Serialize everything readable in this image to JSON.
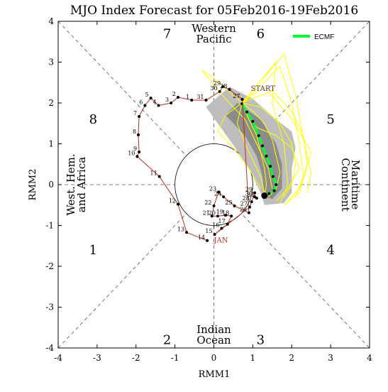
{
  "chart_data": {
    "type": "line",
    "title": "MJO Index Forecast for 05Feb2016-19Feb2016",
    "xlabel": "RMM1",
    "ylabel": "RMM2",
    "xlim": [
      -4,
      4
    ],
    "ylim": [
      -4,
      4
    ],
    "x_ticks": [
      "-4",
      "-3",
      "-2",
      "-1",
      "0",
      "1",
      "2",
      "3",
      "4"
    ],
    "y_ticks": [
      "-4",
      "-3",
      "-2",
      "-1",
      "0",
      "1",
      "2",
      "3",
      "4"
    ],
    "grid": false,
    "legend": {
      "position": "top-right",
      "entries": [
        {
          "name": "ECMF",
          "color": "#00ff33"
        }
      ]
    },
    "colors": {
      "history": "#c0281e",
      "ensemble": "#ffff00",
      "ensemble_mean": "#00ff33",
      "spread": "#a9a9a9",
      "start_label": "#4b2a88",
      "jan_label": "#c0281e"
    },
    "phases": [
      {
        "label": "1",
        "x": -3.1,
        "y": -1.6
      },
      {
        "label": "2",
        "x": -1.2,
        "y": -3.8
      },
      {
        "label": "3",
        "x": 1.2,
        "y": -3.8
      },
      {
        "label": "4",
        "x": 3.0,
        "y": -1.6
      },
      {
        "label": "5",
        "x": 3.0,
        "y": 1.6
      },
      {
        "label": "6",
        "x": 1.2,
        "y": 3.7
      },
      {
        "label": "7",
        "x": -1.2,
        "y": 3.7
      },
      {
        "label": "8",
        "x": -3.1,
        "y": 1.6
      }
    ],
    "regions": {
      "top": [
        "Western",
        "Pacific"
      ],
      "bottom": [
        "Indian",
        "Ocean"
      ],
      "left": [
        "West. Hem.",
        "and Africa"
      ],
      "right": [
        "Maritime",
        "Continent"
      ]
    },
    "history": [
      {
        "label": "14",
        "x": -0.17,
        "y": -1.37
      },
      {
        "label": "13",
        "x": -0.7,
        "y": -1.17
      },
      {
        "label": "12",
        "x": -0.92,
        "y": -0.48
      },
      {
        "label": "11",
        "x": -1.4,
        "y": 0.2
      },
      {
        "label": "10",
        "x": -1.97,
        "y": 0.69
      },
      {
        "label": "9",
        "x": -1.92,
        "y": 0.8
      },
      {
        "label": "8",
        "x": -1.94,
        "y": 1.22
      },
      {
        "label": "7",
        "x": -1.92,
        "y": 1.67
      },
      {
        "label": "6",
        "x": -1.77,
        "y": 1.94
      },
      {
        "label": "5",
        "x": -1.62,
        "y": 2.12
      },
      {
        "label": "4",
        "x": -1.42,
        "y": 1.94
      },
      {
        "label": "3",
        "x": -1.1,
        "y": 2.0
      },
      {
        "label": "2",
        "x": -0.92,
        "y": 2.14
      },
      {
        "label": "1",
        "x": -0.57,
        "y": 2.07
      },
      {
        "label": "31",
        "x": -0.2,
        "y": 2.07
      },
      {
        "label": "30",
        "x": 0.15,
        "y": 2.28
      },
      {
        "label": "29",
        "x": 0.23,
        "y": 2.4
      },
      {
        "label": "28",
        "x": 0.4,
        "y": 2.33
      },
      {
        "label": "27",
        "x": 0.73,
        "y": 2.09
      },
      {
        "label": "26",
        "x": 0.9,
        "y": -0.69
      },
      {
        "label": "25",
        "x": 0.53,
        "y": -0.52
      },
      {
        "label": "24",
        "x": 0.25,
        "y": -0.3
      },
      {
        "label": "23",
        "x": 0.12,
        "y": -0.18
      },
      {
        "label": "22",
        "x": 0.0,
        "y": -0.52
      },
      {
        "label": "21",
        "x": -0.05,
        "y": -0.77
      },
      {
        "label": "20",
        "x": 0.1,
        "y": -0.77
      },
      {
        "label": "19",
        "x": 0.3,
        "y": -0.75
      },
      {
        "label": "18",
        "x": 0.45,
        "y": -0.77
      },
      {
        "label": "17",
        "x": 0.35,
        "y": -0.97
      },
      {
        "label": "16",
        "x": 0.2,
        "y": -1.07
      },
      {
        "label": "15",
        "x": 0.02,
        "y": -1.22
      },
      {
        "label": "27",
        "x": 0.92,
        "y": -0.55
      },
      {
        "label": "28",
        "x": 0.97,
        "y": -0.42
      },
      {
        "label": "29",
        "x": 1.05,
        "y": -0.2
      },
      {
        "label": "30",
        "x": 1.05,
        "y": -0.3
      },
      {
        "label": "31",
        "x": 1.1,
        "y": -0.33
      }
    ],
    "annotations": {
      "start": "START",
      "jan": "JAN"
    },
    "ensemble_mean": [
      {
        "x": 0.72,
        "y": 1.98
      },
      {
        "x": 0.85,
        "y": 1.78
      },
      {
        "x": 1.0,
        "y": 1.55
      },
      {
        "x": 1.15,
        "y": 1.2
      },
      {
        "x": 1.25,
        "y": 0.95
      },
      {
        "x": 1.35,
        "y": 0.7
      },
      {
        "x": 1.45,
        "y": 0.45
      },
      {
        "x": 1.52,
        "y": 0.2
      },
      {
        "x": 1.6,
        "y": 0.0
      },
      {
        "x": 1.55,
        "y": -0.15
      },
      {
        "x": 1.42,
        "y": -0.22
      },
      {
        "x": 1.3,
        "y": -0.27
      }
    ],
    "ensemble_spread_polygon": [
      {
        "x": 0.4,
        "y": 2.4
      },
      {
        "x": 1.0,
        "y": 2.1
      },
      {
        "x": 1.6,
        "y": 1.6
      },
      {
        "x": 2.0,
        "y": 1.3
      },
      {
        "x": 2.1,
        "y": 0.9
      },
      {
        "x": 2.0,
        "y": 0.4
      },
      {
        "x": 2.0,
        "y": -0.2
      },
      {
        "x": 1.8,
        "y": -0.45
      },
      {
        "x": 1.3,
        "y": -0.5
      },
      {
        "x": 1.2,
        "y": -0.2
      },
      {
        "x": 0.95,
        "y": 0.3
      },
      {
        "x": 0.55,
        "y": 0.9
      },
      {
        "x": 0.1,
        "y": 1.5
      },
      {
        "x": -0.2,
        "y": 1.9
      }
    ],
    "ensemble_core_polygon": [
      {
        "x": 0.6,
        "y": 2.0
      },
      {
        "x": 1.2,
        "y": 1.6
      },
      {
        "x": 1.6,
        "y": 1.0
      },
      {
        "x": 1.75,
        "y": 0.5
      },
      {
        "x": 1.75,
        "y": -0.1
      },
      {
        "x": 1.5,
        "y": -0.35
      },
      {
        "x": 1.3,
        "y": -0.3
      },
      {
        "x": 1.25,
        "y": 0.2
      },
      {
        "x": 1.1,
        "y": 0.7
      },
      {
        "x": 0.8,
        "y": 1.2
      },
      {
        "x": 0.3,
        "y": 1.7
      }
    ],
    "ensemble_members": [
      [
        [
          0.72,
          2.0
        ],
        [
          1.0,
          1.8
        ],
        [
          1.3,
          1.5
        ],
        [
          1.5,
          1.1
        ],
        [
          1.6,
          0.7
        ],
        [
          1.7,
          0.3
        ],
        [
          1.6,
          -0.1
        ],
        [
          1.4,
          -0.3
        ]
      ],
      [
        [
          0.72,
          2.0
        ],
        [
          1.2,
          1.9
        ],
        [
          1.7,
          1.5
        ],
        [
          2.0,
          1.0
        ],
        [
          2.1,
          0.5
        ],
        [
          2.0,
          0.0
        ],
        [
          1.8,
          -0.3
        ]
      ],
      [
        [
          0.72,
          2.0
        ],
        [
          0.9,
          1.6
        ],
        [
          1.1,
          1.2
        ],
        [
          1.2,
          0.8
        ],
        [
          1.3,
          0.4
        ],
        [
          1.35,
          0.0
        ],
        [
          1.3,
          -0.3
        ]
      ],
      [
        [
          0.72,
          2.0
        ],
        [
          1.5,
          2.3
        ],
        [
          2.0,
          1.8
        ],
        [
          2.3,
          1.2
        ],
        [
          2.4,
          0.5
        ],
        [
          2.2,
          -0.1
        ],
        [
          1.9,
          -0.4
        ]
      ],
      [
        [
          0.72,
          2.0
        ],
        [
          0.6,
          1.5
        ],
        [
          0.8,
          1.0
        ],
        [
          1.0,
          0.6
        ],
        [
          1.2,
          0.2
        ],
        [
          1.3,
          -0.2
        ]
      ],
      [
        [
          0.72,
          2.0
        ],
        [
          1.8,
          3.2
        ],
        [
          2.1,
          2.2
        ],
        [
          2.3,
          1.1
        ],
        [
          2.5,
          0.3
        ],
        [
          2.4,
          -0.2
        ]
      ],
      [
        [
          0.72,
          2.0
        ],
        [
          0.0,
          2.6
        ],
        [
          -0.3,
          2.8
        ],
        [
          0.3,
          2.1
        ],
        [
          0.8,
          1.6
        ],
        [
          1.1,
          1.0
        ],
        [
          1.4,
          0.4
        ],
        [
          1.5,
          -0.1
        ]
      ],
      [
        [
          0.72,
          2.0
        ],
        [
          1.1,
          1.4
        ],
        [
          1.6,
          1.2
        ],
        [
          2.0,
          0.9
        ],
        [
          2.2,
          0.4
        ],
        [
          1.9,
          -0.1
        ],
        [
          1.6,
          -0.4
        ]
      ],
      [
        [
          0.72,
          2.0
        ],
        [
          0.3,
          1.7
        ],
        [
          0.1,
          1.3
        ],
        [
          0.5,
          0.9
        ],
        [
          0.9,
          0.4
        ],
        [
          1.2,
          -0.1
        ]
      ],
      [
        [
          0.72,
          2.0
        ],
        [
          1.4,
          2.6
        ],
        [
          1.7,
          2.9
        ],
        [
          2.0,
          2.0
        ],
        [
          2.2,
          1.0
        ],
        [
          2.3,
          0.2
        ],
        [
          2.1,
          -0.3
        ]
      ],
      [
        [
          0.72,
          2.0
        ],
        [
          1.6,
          3.0
        ],
        [
          1.5,
          2.0
        ],
        [
          1.8,
          1.0
        ],
        [
          1.9,
          0.0
        ],
        [
          1.7,
          -0.45
        ]
      ],
      [
        [
          0.72,
          2.0
        ],
        [
          1.3,
          2.4
        ],
        [
          2.0,
          1.6
        ],
        [
          2.5,
          0.8
        ],
        [
          2.2,
          -0.2
        ],
        [
          1.8,
          -0.5
        ]
      ]
    ]
  }
}
